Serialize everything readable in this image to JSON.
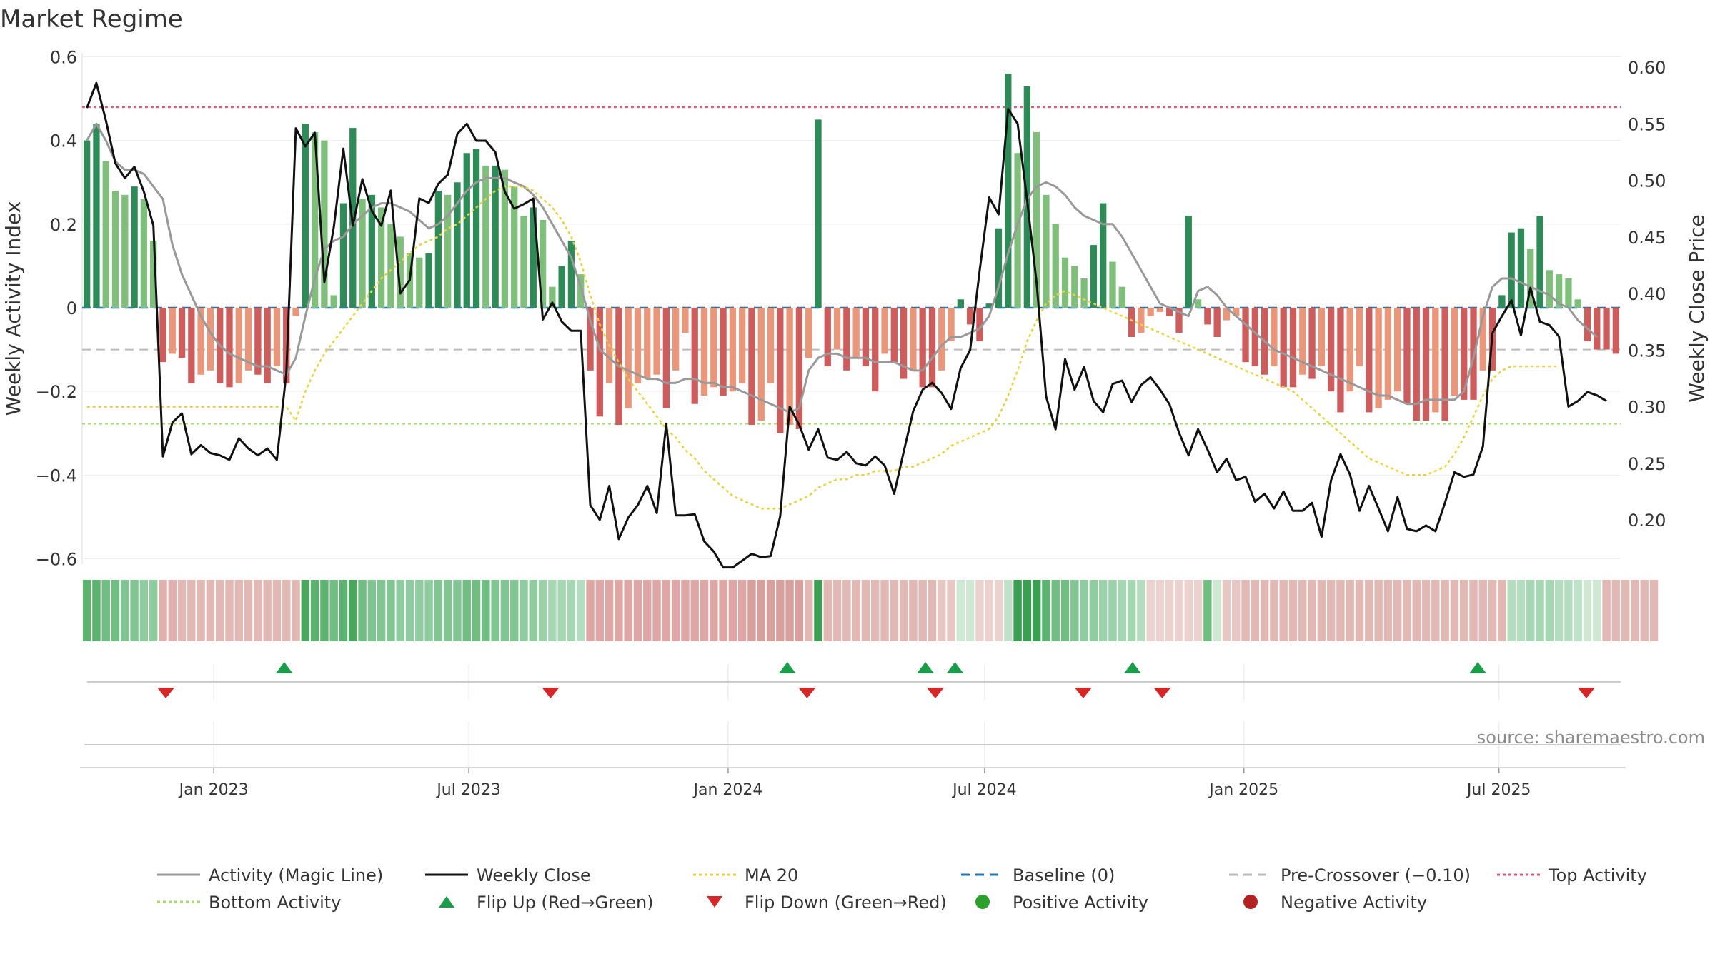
{
  "chart_data": {
    "type": "bar",
    "title": "Market Regime",
    "ylabel_left": "Weekly Activity Index",
    "ylabel_right": "Weekly Close Price",
    "ylim_left": [
      -0.6,
      0.6
    ],
    "ylim_right": [
      0.15,
      0.62
    ],
    "yticks_left": [
      {
        "v": 0.6,
        "label": "0.6"
      },
      {
        "v": 0.4,
        "label": "0.4"
      },
      {
        "v": 0.2,
        "label": "0.2"
      },
      {
        "v": 0,
        "label": "0"
      },
      {
        "v": -0.2,
        "label": "−0.2"
      },
      {
        "v": -0.4,
        "label": "−0.4"
      },
      {
        "v": -0.6,
        "label": "−0.6"
      }
    ],
    "yticks_right": [
      {
        "v": 0.6,
        "label": "0.60"
      },
      {
        "v": 0.55,
        "label": "0.55"
      },
      {
        "v": 0.5,
        "label": "0.50"
      },
      {
        "v": 0.45,
        "label": "0.45"
      },
      {
        "v": 0.4,
        "label": "0.40"
      },
      {
        "v": 0.35,
        "label": "0.35"
      },
      {
        "v": 0.3,
        "label": "0.30"
      },
      {
        "v": 0.25,
        "label": "0.25"
      },
      {
        "v": 0.2,
        "label": "0.20"
      }
    ],
    "x_start": "2022-10-03",
    "x_end": "2025-09-22",
    "xticks": [
      {
        "date": "2023-01-01",
        "label": "Jan 2023"
      },
      {
        "date": "2023-07-01",
        "label": "Jul 2023"
      },
      {
        "date": "2024-01-01",
        "label": "Jan 2024"
      },
      {
        "date": "2024-07-01",
        "label": "Jul 2024"
      },
      {
        "date": "2025-01-01",
        "label": "Jan 2025"
      },
      {
        "date": "2025-07-01",
        "label": "Jul 2025"
      }
    ],
    "reference_lines": {
      "baseline": 0,
      "pre_crossover": -0.1,
      "top_activity": 0.48,
      "bottom_activity": -0.277
    },
    "activity_bars": [
      0.4,
      0.44,
      0.35,
      0.28,
      0.27,
      0.29,
      0.26,
      0.16,
      -0.13,
      -0.11,
      -0.12,
      -0.18,
      -0.16,
      -0.15,
      -0.18,
      -0.19,
      -0.18,
      -0.15,
      -0.16,
      -0.18,
      -0.14,
      -0.18,
      -0.02,
      0.44,
      0.42,
      0.4,
      0.03,
      0.25,
      0.43,
      0.26,
      0.27,
      0.24,
      0.2,
      0.17,
      0.13,
      0.12,
      0.13,
      0.28,
      0.27,
      0.3,
      0.37,
      0.38,
      0.34,
      0.34,
      0.33,
      0.29,
      0.22,
      0.24,
      0.21,
      0.05,
      0.1,
      0.16,
      0.08,
      -0.15,
      -0.26,
      -0.18,
      -0.28,
      -0.24,
      -0.18,
      -0.17,
      -0.16,
      -0.24,
      -0.15,
      -0.06,
      -0.23,
      -0.21,
      -0.19,
      -0.21,
      -0.2,
      -0.18,
      -0.28,
      -0.27,
      -0.18,
      -0.3,
      -0.28,
      -0.29,
      -0.12,
      0.45,
      -0.14,
      -0.1,
      -0.15,
      -0.12,
      -0.14,
      -0.2,
      -0.11,
      -0.13,
      -0.17,
      -0.15,
      -0.19,
      -0.19,
      -0.15,
      -0.08,
      0.02,
      -0.04,
      -0.08,
      0.01,
      0.19,
      0.56,
      0.37,
      0.53,
      0.42,
      0.27,
      0.2,
      0.12,
      0.1,
      0.07,
      0.15,
      0.25,
      0.11,
      0.05,
      -0.07,
      -0.06,
      -0.02,
      -0.01,
      -0.02,
      -0.06,
      0.22,
      0.02,
      -0.04,
      -0.07,
      -0.03,
      -0.02,
      -0.13,
      -0.14,
      -0.16,
      -0.14,
      -0.19,
      -0.19,
      -0.16,
      -0.17,
      -0.14,
      -0.2,
      -0.25,
      -0.2,
      -0.14,
      -0.25,
      -0.24,
      -0.22,
      -0.2,
      -0.23,
      -0.27,
      -0.27,
      -0.25,
      -0.27,
      -0.21,
      -0.22,
      -0.22,
      -0.15,
      -0.15,
      0.03,
      0.18,
      0.19,
      0.14,
      0.22,
      0.09,
      0.08,
      0.07,
      0.02,
      -0.08,
      -0.1,
      -0.1,
      -0.11
    ],
    "magic_line": [
      0.4,
      0.44,
      0.4,
      0.35,
      0.33,
      0.33,
      0.32,
      0.29,
      0.26,
      0.15,
      0.08,
      0.03,
      -0.02,
      -0.06,
      -0.09,
      -0.11,
      -0.12,
      -0.13,
      -0.14,
      -0.14,
      -0.15,
      -0.16,
      -0.12,
      -0.02,
      0.07,
      0.14,
      0.16,
      0.17,
      0.2,
      0.22,
      0.24,
      0.25,
      0.25,
      0.24,
      0.23,
      0.21,
      0.19,
      0.2,
      0.22,
      0.25,
      0.28,
      0.3,
      0.31,
      0.31,
      0.31,
      0.3,
      0.29,
      0.27,
      0.24,
      0.2,
      0.16,
      0.12,
      0.05,
      -0.03,
      -0.1,
      -0.12,
      -0.14,
      -0.15,
      -0.16,
      -0.17,
      -0.17,
      -0.18,
      -0.18,
      -0.17,
      -0.17,
      -0.18,
      -0.18,
      -0.19,
      -0.19,
      -0.2,
      -0.21,
      -0.22,
      -0.23,
      -0.24,
      -0.25,
      -0.24,
      -0.15,
      -0.12,
      -0.11,
      -0.11,
      -0.12,
      -0.12,
      -0.12,
      -0.13,
      -0.13,
      -0.13,
      -0.14,
      -0.15,
      -0.15,
      -0.12,
      -0.09,
      -0.07,
      -0.07,
      -0.06,
      -0.05,
      -0.02,
      0.05,
      0.13,
      0.2,
      0.26,
      0.29,
      0.3,
      0.29,
      0.27,
      0.24,
      0.22,
      0.21,
      0.2,
      0.2,
      0.17,
      0.13,
      0.09,
      0.05,
      0.01,
      0.0,
      -0.01,
      -0.02,
      0.04,
      0.05,
      0.03,
      0.0,
      -0.02,
      -0.04,
      -0.06,
      -0.08,
      -0.1,
      -0.11,
      -0.12,
      -0.13,
      -0.14,
      -0.15,
      -0.16,
      -0.17,
      -0.18,
      -0.19,
      -0.2,
      -0.21,
      -0.21,
      -0.22,
      -0.23,
      -0.23,
      -0.22,
      -0.22,
      -0.22,
      -0.22,
      -0.2,
      -0.12,
      -0.02,
      0.05,
      0.07,
      0.07,
      0.06,
      0.05,
      0.04,
      0.03,
      0.01,
      0.0,
      -0.03,
      -0.05,
      -0.07
    ],
    "ma20": [
      -0.237,
      -0.237,
      -0.237,
      -0.237,
      -0.237,
      -0.237,
      -0.237,
      -0.237,
      -0.237,
      -0.237,
      -0.237,
      -0.237,
      -0.237,
      -0.237,
      -0.237,
      -0.237,
      -0.237,
      -0.237,
      -0.237,
      -0.237,
      -0.237,
      -0.237,
      -0.27,
      -0.2,
      -0.15,
      -0.11,
      -0.08,
      -0.05,
      -0.02,
      0.01,
      0.04,
      0.07,
      0.09,
      0.11,
      0.13,
      0.15,
      0.16,
      0.17,
      0.19,
      0.2,
      0.22,
      0.24,
      0.26,
      0.28,
      0.29,
      0.29,
      0.29,
      0.28,
      0.26,
      0.24,
      0.21,
      0.17,
      0.11,
      0.03,
      -0.04,
      -0.09,
      -0.13,
      -0.17,
      -0.2,
      -0.23,
      -0.26,
      -0.29,
      -0.31,
      -0.34,
      -0.36,
      -0.39,
      -0.41,
      -0.43,
      -0.45,
      -0.46,
      -0.47,
      -0.48,
      -0.48,
      -0.48,
      -0.47,
      -0.46,
      -0.45,
      -0.43,
      -0.42,
      -0.41,
      -0.41,
      -0.4,
      -0.4,
      -0.39,
      -0.39,
      -0.39,
      -0.38,
      -0.38,
      -0.37,
      -0.36,
      -0.35,
      -0.33,
      -0.32,
      -0.31,
      -0.3,
      -0.29,
      -0.26,
      -0.21,
      -0.15,
      -0.08,
      -0.03,
      0.01,
      0.03,
      0.04,
      0.03,
      0.02,
      0.01,
      0.0,
      -0.01,
      -0.02,
      -0.03,
      -0.04,
      -0.05,
      -0.06,
      -0.07,
      -0.08,
      -0.09,
      -0.1,
      -0.11,
      -0.12,
      -0.13,
      -0.14,
      -0.15,
      -0.16,
      -0.17,
      -0.18,
      -0.19,
      -0.2,
      -0.22,
      -0.24,
      -0.26,
      -0.28,
      -0.3,
      -0.32,
      -0.34,
      -0.36,
      -0.37,
      -0.38,
      -0.39,
      -0.4,
      -0.4,
      -0.4,
      -0.39,
      -0.38,
      -0.35,
      -0.31,
      -0.26,
      -0.21,
      -0.17,
      -0.15,
      -0.14,
      -0.14,
      -0.14,
      -0.14,
      -0.14,
      -0.14
    ],
    "weekly_close": [
      0.564,
      0.586,
      0.553,
      0.515,
      0.502,
      0.512,
      0.49,
      0.46,
      0.256,
      0.286,
      0.294,
      0.258,
      0.266,
      0.259,
      0.257,
      0.253,
      0.272,
      0.263,
      0.257,
      0.263,
      0.253,
      0.33,
      0.546,
      0.53,
      0.542,
      0.41,
      0.459,
      0.528,
      0.46,
      0.501,
      0.473,
      0.46,
      0.491,
      0.4,
      0.412,
      0.484,
      0.48,
      0.497,
      0.505,
      0.541,
      0.55,
      0.535,
      0.535,
      0.525,
      0.49,
      0.475,
      0.479,
      0.484,
      0.377,
      0.392,
      0.375,
      0.367,
      0.367,
      0.213,
      0.2,
      0.23,
      0.183,
      0.202,
      0.213,
      0.23,
      0.206,
      0.285,
      0.204,
      0.204,
      0.205,
      0.181,
      0.172,
      0.158,
      0.158,
      0.164,
      0.17,
      0.167,
      0.168,
      0.203,
      0.3,
      0.284,
      0.262,
      0.28,
      0.255,
      0.253,
      0.26,
      0.25,
      0.248,
      0.256,
      0.248,
      0.223,
      0.26,
      0.296,
      0.315,
      0.321,
      0.312,
      0.298,
      0.334,
      0.35,
      0.42,
      0.485,
      0.47,
      0.563,
      0.55,
      0.482,
      0.409,
      0.309,
      0.28,
      0.342,
      0.315,
      0.335,
      0.305,
      0.295,
      0.32,
      0.323,
      0.304,
      0.319,
      0.326,
      0.315,
      0.302,
      0.277,
      0.257,
      0.28,
      0.262,
      0.242,
      0.254,
      0.235,
      0.238,
      0.216,
      0.223,
      0.21,
      0.225,
      0.208,
      0.208,
      0.215,
      0.185,
      0.235,
      0.258,
      0.24,
      0.208,
      0.23,
      0.21,
      0.19,
      0.22,
      0.192,
      0.19,
      0.195,
      0.19,
      0.215,
      0.242,
      0.238,
      0.24,
      0.265,
      0.365,
      0.38,
      0.394,
      0.363,
      0.405,
      0.375,
      0.372,
      0.362,
      0.3,
      0.305,
      0.313,
      0.31,
      0.305
    ],
    "ribbon": [
      "#5cb26f",
      "#5cb26f",
      "#71be82",
      "#71be82",
      "#81c592",
      "#81c592",
      "#8fcca0",
      "#8fcca0",
      "#e0b0ae",
      "#e0b0ae",
      "#e2b8b5",
      "#e2b8b5",
      "#e2b8b5",
      "#e2b8b5",
      "#e2b8b5",
      "#e2b8b5",
      "#e2b8b5",
      "#e2b8b5",
      "#e2b8b5",
      "#e2b8b5",
      "#e2b8b5",
      "#e2b8b5",
      "#e2b8b5",
      "#4aa85e",
      "#5cb26f",
      "#5cb26f",
      "#71be82",
      "#5cb26f",
      "#4aa85e",
      "#71be82",
      "#81c592",
      "#81c592",
      "#81c592",
      "#8fcca0",
      "#8fcca0",
      "#8fcca0",
      "#8fcca0",
      "#81c592",
      "#81c592",
      "#81c592",
      "#71be82",
      "#71be82",
      "#71be82",
      "#81c592",
      "#81c592",
      "#81c592",
      "#8fcca0",
      "#8fcca0",
      "#9bd2aa",
      "#a6d7b3",
      "#a6d7b3",
      "#a6d7b3",
      "#b4ddbf",
      "#dea7a5",
      "#dea7a5",
      "#dea7a5",
      "#dea7a5",
      "#dea7a5",
      "#dea7a5",
      "#dea7a5",
      "#dea7a5",
      "#dea7a5",
      "#dea7a5",
      "#dea7a5",
      "#dea7a5",
      "#dea7a5",
      "#dea7a5",
      "#dea7a5",
      "#dea7a5",
      "#dea7a5",
      "#d8a09d",
      "#d8a09d",
      "#d8a09d",
      "#d8a09d",
      "#d8a09d",
      "#d8a09d",
      "#e2b8b5",
      "#3a9f50",
      "#e2b8b5",
      "#e2b8b5",
      "#e2b8b5",
      "#e2b8b5",
      "#e2b8b5",
      "#e2b8b5",
      "#e2b8b5",
      "#e2b8b5",
      "#e2b8b5",
      "#e2b8b5",
      "#e2b8b5",
      "#e2b8b5",
      "#e8c6c3",
      "#e8c6c3",
      "#cfe8d4",
      "#cfe8d4",
      "#ecd2cf",
      "#ecd2cf",
      "#ecd2cf",
      "#bfe1c7",
      "#3a9f50",
      "#3a9f50",
      "#3a9f50",
      "#5cb26f",
      "#71be82",
      "#71be82",
      "#81c592",
      "#8fcca0",
      "#8fcca0",
      "#9bd2aa",
      "#9bd2aa",
      "#a6d7b3",
      "#a6d7b3",
      "#b4ddbf",
      "#ecd2cf",
      "#ecd2cf",
      "#ecd2cf",
      "#ecd2cf",
      "#ecd2cf",
      "#ecd2cf",
      "#71be82",
      "#cfe8d4",
      "#e8c6c3",
      "#e8c6c3",
      "#e2b8b5",
      "#e2b8b5",
      "#e2b8b5",
      "#e2b8b5",
      "#e2b8b5",
      "#e2b8b5",
      "#e2b8b5",
      "#e2b8b5",
      "#e2b8b5",
      "#e2b8b5",
      "#e2b8b5",
      "#e2b8b5",
      "#e2b8b5",
      "#e2b8b5",
      "#e2b8b5",
      "#e2b8b5",
      "#e2b8b5",
      "#e2b8b5",
      "#e2b8b5",
      "#e2b8b5",
      "#e2b8b5",
      "#e2b8b5",
      "#e2b8b5",
      "#e2b8b5",
      "#e2b8b5",
      "#e2b8b5",
      "#e2b8b5",
      "#e2b8b5",
      "#b4ddbf",
      "#b4ddbf",
      "#a6d7b3",
      "#a6d7b3",
      "#a6d7b3",
      "#b4ddbf",
      "#b4ddbf",
      "#bfe1c7",
      "#cfe8d4",
      "#cfe8d4",
      "#e2b8b5",
      "#e2b8b5",
      "#e2b8b5",
      "#e2b8b5",
      "#e2b8b5",
      "#e2b8b5"
    ],
    "flip_up_dates": [
      "2023-02-20",
      "2024-02-12",
      "2024-05-20",
      "2024-06-10",
      "2024-10-14",
      "2025-06-16"
    ],
    "flip_down_dates": [
      "2022-11-28",
      "2023-08-28",
      "2024-02-26",
      "2024-05-27",
      "2024-09-09",
      "2024-11-04",
      "2025-09-01"
    ],
    "colors": {
      "bar_pos_strong": "#2e8b57",
      "bar_pos_weak": "#7fbf7b",
      "bar_neg_strong": "#cd5c5c",
      "bar_neg_weak": "#e9967a",
      "magic_line": "#999999",
      "weekly_close": "#111111",
      "ma20": "#e8d33f",
      "baseline": "#1f77b4",
      "pre_crossover": "#bbbbbb",
      "top_activity": "#e05a7a",
      "bottom_activity": "#a6d96a",
      "flip_up": "#1a9e4a",
      "flip_down": "#d62728",
      "positive_activity": "#2ca02c",
      "negative_activity": "#b22222"
    },
    "legend": [
      {
        "label": "Activity (Magic Line)",
        "kind": "line",
        "color": "#999999",
        "dash": ""
      },
      {
        "label": "Weekly Close",
        "kind": "line",
        "color": "#111111",
        "dash": ""
      },
      {
        "label": "MA 20",
        "kind": "line",
        "color": "#e8d33f",
        "dash": "4,4"
      },
      {
        "label": "Baseline (0)",
        "kind": "line",
        "color": "#1f77b4",
        "dash": "12,8"
      },
      {
        "label": "Pre-Crossover (−0.10)",
        "kind": "line",
        "color": "#bbbbbb",
        "dash": "12,8"
      },
      {
        "label": "Top Activity",
        "kind": "line",
        "color": "#e05a7a",
        "dash": "4,4"
      },
      {
        "label": "Bottom Activity",
        "kind": "line",
        "color": "#a6d96a",
        "dash": "4,4"
      },
      {
        "label": "Flip Up (Red→Green)",
        "kind": "tri-up",
        "color": "#1a9e4a"
      },
      {
        "label": "Flip Down (Green→Red)",
        "kind": "tri-down",
        "color": "#d62728"
      },
      {
        "label": "Positive Activity",
        "kind": "dot",
        "color": "#2ca02c"
      },
      {
        "label": "Negative Activity",
        "kind": "dot",
        "color": "#b22222"
      }
    ],
    "source": "source: sharemaestro.com"
  }
}
